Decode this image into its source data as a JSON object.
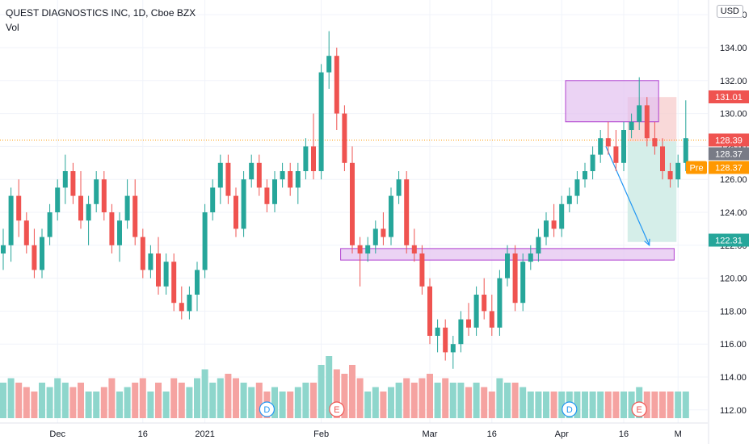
{
  "header": {
    "title": "QUEST DIAGNOSTICS INC, 1D, Cboe BZX",
    "indicator": "Vol"
  },
  "currency_label": "USD",
  "colors": {
    "up": "#26a69a",
    "down": "#ef5350",
    "vol_up": "#8ed6cc",
    "vol_down": "#f5a3a1",
    "zone": "#e3c1f0",
    "zone_border": "#b040d0",
    "arrow": "#2196f3",
    "stop": "#f7d0cf",
    "target": "#d0ece7"
  },
  "chart_data": {
    "type": "candlestick",
    "ylim": [
      111.5,
      136.5
    ],
    "y_ticks": [
      112,
      114,
      116,
      118,
      120,
      122,
      124,
      126,
      128,
      130,
      132,
      134,
      136
    ],
    "y_tick_labels": [
      "112.00",
      "114.00",
      "116.00",
      "118.00",
      "120.00",
      "122.00",
      "124.00",
      "126.00",
      "128.00",
      "130.00",
      "132.00",
      "134.00",
      "136.00"
    ],
    "x_labels": [
      {
        "label": "Dec",
        "i": 7
      },
      {
        "label": "16",
        "i": 18
      },
      {
        "label": "2021",
        "i": 26
      },
      {
        "label": "Feb",
        "i": 41
      },
      {
        "label": "Mar",
        "i": 55
      },
      {
        "label": "16",
        "i": 63
      },
      {
        "label": "Apr",
        "i": 72
      },
      {
        "label": "16",
        "i": 80
      },
      {
        "label": "M",
        "i": 87
      }
    ],
    "price_labels": [
      {
        "text": "131.01",
        "value": 131.01,
        "color": "#ef5350"
      },
      {
        "text": "128.39",
        "value": 128.39,
        "color": "#ef5350"
      },
      {
        "text": "128.37",
        "value": 128.37,
        "color": "#787b86"
      },
      {
        "text": "128.37",
        "value": 128.37,
        "color": "#ff9800",
        "prefix": "Pre"
      },
      {
        "text": "122.31",
        "value": 122.31,
        "color": "#26a69a"
      }
    ],
    "last_price_line": 128.39,
    "zones": [
      {
        "from_i": 72.5,
        "to_i": 84.5,
        "low": 129.5,
        "high": 132.0
      },
      {
        "from_i": 43.5,
        "to_i": 86.5,
        "low": 121.1,
        "high": 121.8
      }
    ],
    "position": {
      "from_i": 80.5,
      "to_i": 86.8,
      "entry": 128.3,
      "stop": 131.0,
      "target": 122.2
    },
    "arrow": {
      "from_i": 77.7,
      "from_v": 128.0,
      "to_i": 83.3,
      "to_v": 122.0
    },
    "events": [
      {
        "i": 34,
        "label": "D",
        "color": "#2196f3"
      },
      {
        "i": 43,
        "label": "E",
        "color": "#ef5350"
      },
      {
        "i": 73,
        "label": "D",
        "color": "#2196f3"
      },
      {
        "i": 82,
        "label": "E",
        "color": "#ef5350"
      }
    ],
    "candles": [
      [
        121.5,
        123.0,
        120.5,
        122.0,
        0.4
      ],
      [
        122.0,
        125.5,
        121.0,
        125.0,
        0.45
      ],
      [
        125.0,
        126.0,
        122.5,
        123.5,
        0.4
      ],
      [
        123.5,
        124.0,
        121.5,
        122.0,
        0.35
      ],
      [
        122.0,
        123.0,
        120.0,
        120.5,
        0.3
      ],
      [
        120.5,
        123.0,
        120.0,
        122.5,
        0.4
      ],
      [
        122.5,
        124.5,
        122.0,
        124.0,
        0.35
      ],
      [
        124.0,
        126.0,
        123.5,
        125.5,
        0.45
      ],
      [
        125.5,
        127.5,
        124.5,
        126.5,
        0.4
      ],
      [
        126.5,
        127.0,
        124.5,
        125.0,
        0.35
      ],
      [
        125.0,
        126.5,
        123.0,
        123.5,
        0.4
      ],
      [
        123.5,
        125.0,
        122.0,
        124.5,
        0.3
      ],
      [
        124.5,
        126.5,
        124.0,
        126.0,
        0.3
      ],
      [
        126.0,
        126.5,
        123.5,
        124.0,
        0.35
      ],
      [
        124.0,
        124.5,
        121.5,
        122.0,
        0.45
      ],
      [
        122.0,
        124.0,
        121.0,
        123.5,
        0.3
      ],
      [
        123.5,
        126.0,
        123.0,
        125.0,
        0.35
      ],
      [
        125.0,
        126.0,
        122.0,
        122.5,
        0.4
      ],
      [
        122.5,
        123.0,
        120.0,
        120.5,
        0.45
      ],
      [
        120.5,
        122.0,
        120.0,
        121.5,
        0.3
      ],
      [
        121.5,
        122.5,
        119.0,
        119.5,
        0.4
      ],
      [
        119.5,
        121.5,
        119.0,
        121.0,
        0.3
      ],
      [
        121.0,
        121.5,
        118.0,
        118.5,
        0.45
      ],
      [
        118.5,
        119.5,
        117.5,
        118.0,
        0.4
      ],
      [
        118.0,
        119.5,
        117.5,
        119.0,
        0.35
      ],
      [
        119.0,
        121.0,
        118.0,
        120.5,
        0.45
      ],
      [
        120.5,
        124.5,
        120.0,
        124.0,
        0.55
      ],
      [
        124.0,
        126.0,
        123.5,
        125.5,
        0.4
      ],
      [
        125.5,
        127.5,
        124.5,
        127.0,
        0.45
      ],
      [
        127.0,
        127.5,
        124.5,
        125.0,
        0.5
      ],
      [
        125.0,
        125.5,
        122.5,
        123.0,
        0.45
      ],
      [
        123.0,
        126.5,
        122.5,
        126.0,
        0.4
      ],
      [
        126.0,
        127.5,
        125.5,
        127.0,
        0.35
      ],
      [
        127.0,
        127.5,
        125.0,
        125.5,
        0.4
      ],
      [
        125.5,
        126.0,
        124.0,
        124.5,
        0.3
      ],
      [
        124.5,
        126.5,
        124.0,
        126.0,
        0.35
      ],
      [
        126.0,
        127.0,
        125.5,
        126.5,
        0.3
      ],
      [
        126.5,
        127.0,
        125.0,
        125.5,
        0.3
      ],
      [
        125.5,
        127.0,
        124.5,
        126.5,
        0.35
      ],
      [
        126.5,
        128.5,
        126.0,
        128.0,
        0.4
      ],
      [
        128.0,
        130.0,
        126.0,
        126.5,
        0.4
      ],
      [
        126.5,
        133.0,
        126.0,
        132.5,
        0.6
      ],
      [
        132.5,
        135.0,
        131.5,
        133.5,
        0.7
      ],
      [
        133.5,
        134.0,
        129.0,
        130.0,
        0.55
      ],
      [
        130.0,
        130.5,
        126.5,
        127.0,
        0.5
      ],
      [
        127.0,
        128.0,
        121.5,
        122.0,
        0.6
      ],
      [
        122.0,
        122.5,
        119.5,
        121.5,
        0.45
      ],
      [
        121.5,
        122.5,
        121.0,
        122.0,
        0.3
      ],
      [
        122.0,
        123.5,
        121.5,
        123.0,
        0.35
      ],
      [
        123.0,
        124.0,
        122.0,
        122.5,
        0.3
      ],
      [
        122.5,
        125.5,
        122.0,
        125.0,
        0.35
      ],
      [
        125.0,
        126.5,
        124.5,
        126.0,
        0.4
      ],
      [
        126.0,
        126.5,
        121.5,
        122.0,
        0.45
      ],
      [
        122.0,
        123.0,
        121.0,
        121.5,
        0.4
      ],
      [
        121.5,
        122.0,
        119.0,
        119.5,
        0.45
      ],
      [
        119.5,
        120.0,
        116.0,
        116.5,
        0.5
      ],
      [
        116.5,
        117.5,
        115.5,
        117.0,
        0.4
      ],
      [
        117.0,
        117.5,
        115.0,
        115.5,
        0.45
      ],
      [
        115.5,
        116.5,
        114.5,
        116.0,
        0.4
      ],
      [
        116.0,
        118.0,
        115.5,
        117.5,
        0.4
      ],
      [
        117.5,
        118.5,
        116.5,
        117.0,
        0.35
      ],
      [
        117.0,
        119.5,
        116.5,
        119.0,
        0.4
      ],
      [
        119.0,
        120.0,
        117.5,
        118.0,
        0.35
      ],
      [
        118.0,
        119.0,
        116.5,
        117.0,
        0.3
      ],
      [
        117.0,
        120.5,
        116.5,
        120.0,
        0.45
      ],
      [
        120.0,
        122.0,
        119.5,
        121.5,
        0.4
      ],
      [
        121.5,
        122.0,
        118.0,
        118.5,
        0.4
      ],
      [
        118.5,
        121.5,
        118.0,
        121.0,
        0.35
      ],
      [
        121.0,
        122.0,
        120.5,
        121.5,
        0.3
      ],
      [
        121.5,
        123.0,
        121.0,
        122.5,
        0.3
      ],
      [
        122.5,
        124.0,
        122.0,
        123.5,
        0.3
      ],
      [
        123.5,
        124.5,
        122.5,
        123.0,
        0.3
      ],
      [
        123.0,
        125.0,
        122.5,
        124.5,
        0.3
      ],
      [
        124.5,
        125.5,
        124.0,
        125.0,
        0.3
      ],
      [
        125.0,
        126.5,
        124.5,
        126.0,
        0.3
      ],
      [
        126.0,
        127.0,
        125.5,
        126.5,
        0.3
      ],
      [
        126.5,
        128.0,
        126.0,
        127.5,
        0.3
      ],
      [
        127.5,
        129.0,
        127.0,
        128.5,
        0.3
      ],
      [
        128.5,
        129.5,
        127.5,
        128.0,
        0.3
      ],
      [
        128.0,
        129.0,
        126.5,
        127.0,
        0.3
      ],
      [
        127.0,
        129.5,
        126.5,
        129.0,
        0.3
      ],
      [
        129.0,
        130.0,
        128.5,
        129.5,
        0.3
      ],
      [
        129.5,
        132.2,
        129.0,
        130.5,
        0.35
      ],
      [
        130.5,
        131.0,
        128.0,
        128.5,
        0.3
      ],
      [
        128.5,
        129.5,
        127.5,
        128.0,
        0.3
      ],
      [
        128.0,
        128.5,
        126.0,
        126.5,
        0.3
      ],
      [
        126.5,
        127.0,
        125.5,
        126.0,
        0.3
      ],
      [
        126.0,
        127.5,
        125.5,
        127.0,
        0.3
      ],
      [
        127.0,
        130.8,
        126.5,
        128.5,
        0.3
      ]
    ]
  }
}
